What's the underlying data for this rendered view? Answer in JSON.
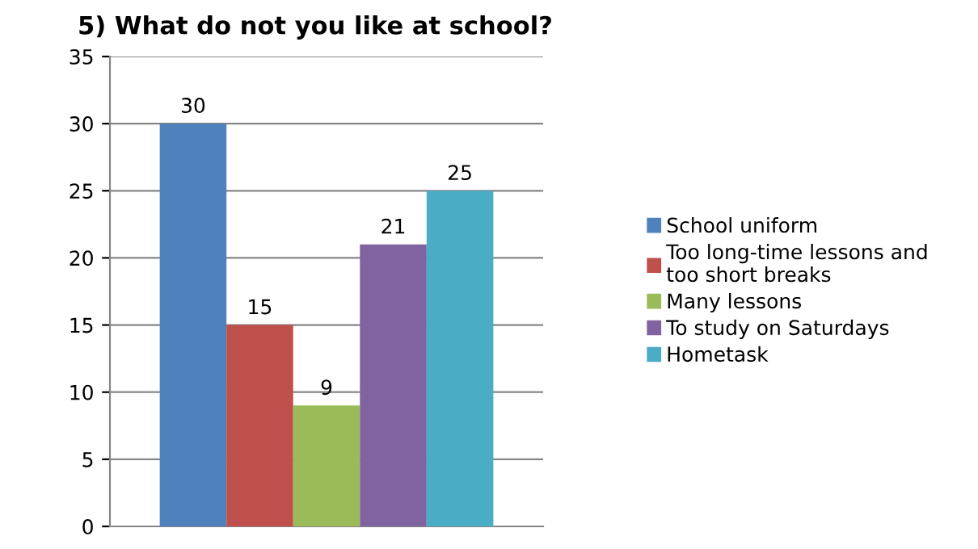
{
  "chart_data": {
    "type": "bar",
    "title": "5) What do not you like at school?",
    "categories": [
      null
    ],
    "series": [
      {
        "name": "School uniform",
        "color": "#4f81bd",
        "values": [
          30
        ]
      },
      {
        "name": "Too long-time lessons and\ntoo short breaks",
        "color": "#c0504d",
        "values": [
          15
        ]
      },
      {
        "name": "Many lessons",
        "color": "#9bbb59",
        "values": [
          9
        ]
      },
      {
        "name": "To study on Saturdays",
        "color": "#8064a2",
        "values": [
          21
        ]
      },
      {
        "name": "Hometask",
        "color": "#4bacc6",
        "values": [
          25
        ]
      }
    ],
    "ylim": [
      0,
      35
    ],
    "yticks": [
      0,
      5,
      10,
      15,
      20,
      25,
      30,
      35
    ],
    "grid": "y",
    "legend": "right",
    "data_labels": true
  }
}
